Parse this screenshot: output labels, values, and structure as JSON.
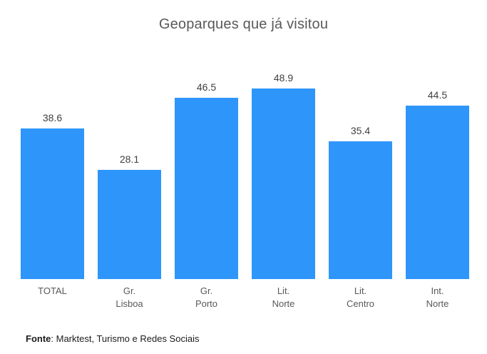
{
  "title": "Geoparques que já visitou",
  "footer": {
    "source_label": "Fonte",
    "source_text": ": Marktest, Turismo e Redes Sociais"
  },
  "colors": {
    "bar": "#2E96FA",
    "title_text": "#595959",
    "value_label_text": "#404040",
    "axis_label_text": "#595959",
    "background": "#FFFFFF"
  },
  "chart_data": {
    "type": "bar",
    "title": "Geoparques que já visitou",
    "categories": [
      "TOTAL",
      "Gr. Lisboa",
      "Gr. Porto",
      "Lit. Norte",
      "Lit. Centro",
      "Int. Norte"
    ],
    "category_lines": [
      [
        "TOTAL",
        ""
      ],
      [
        "Gr.",
        "Lisboa"
      ],
      [
        "Gr.",
        "Porto"
      ],
      [
        "Lit.",
        "Norte"
      ],
      [
        "Lit.",
        "Centro"
      ],
      [
        "Int.",
        "Norte"
      ]
    ],
    "values": [
      38.6,
      28.1,
      46.5,
      48.9,
      35.4,
      44.5
    ],
    "value_labels_shown": true,
    "xlabel": "",
    "ylabel": "",
    "ylim": [
      0,
      57.3
    ],
    "grid": false,
    "legend": false,
    "axes_visible": false,
    "source_note": "Fonte: Marktest, Turismo e Redes Sociais"
  }
}
